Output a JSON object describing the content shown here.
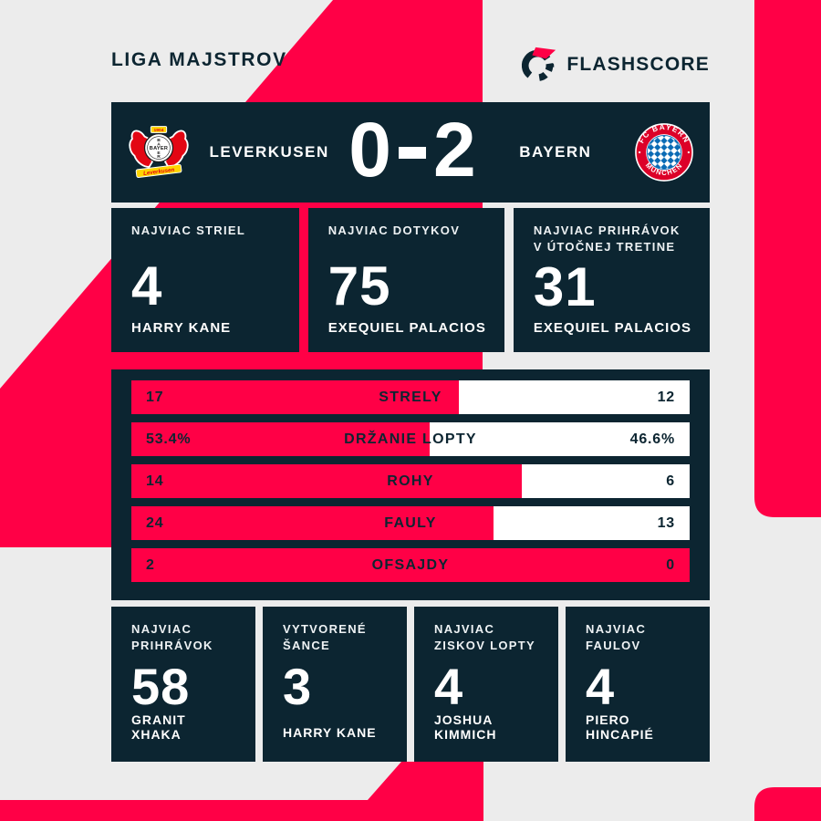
{
  "page": {
    "bg": "#ececec",
    "accent": "#ff0046",
    "dark": "#0c2531"
  },
  "header": {
    "competition": "LIGA MAJSTROV",
    "brand": "FLASHSCORE"
  },
  "scoreboard": {
    "home_team": "LEVERKUSEN",
    "away_team": "BAYERN",
    "home_score": "0",
    "away_score": "2"
  },
  "top_stats": [
    {
      "label": "NAJVIAC STRIEL",
      "value": "4",
      "player": "HARRY KANE"
    },
    {
      "label": "NAJVIAC DOTYKOV",
      "value": "75",
      "player": "EXEQUIEL PALACIOS"
    },
    {
      "label": "NAJVIAC PRIHRÁVOK V ÚTOČNEJ TRETINE",
      "value": "31",
      "player": "EXEQUIEL PALACIOS"
    }
  ],
  "match_stats": {
    "rows": [
      {
        "label": "STRELY",
        "home": "17",
        "away": "12",
        "home_value": 17,
        "away_value": 12
      },
      {
        "label": "DRŽANIE LOPTY",
        "home": "53.4%",
        "away": "46.6%",
        "home_value": 53.4,
        "away_value": 46.6
      },
      {
        "label": "ROHY",
        "home": "14",
        "away": "6",
        "home_value": 14,
        "away_value": 6
      },
      {
        "label": "FAULY",
        "home": "24",
        "away": "13",
        "home_value": 24,
        "away_value": 13
      },
      {
        "label": "OFSAJDY",
        "home": "2",
        "away": "0",
        "home_value": 2,
        "away_value": 0
      }
    ]
  },
  "bottom_stats": [
    {
      "label": "NAJVIAC PRIHRÁVOK",
      "value": "58",
      "player": "GRANIT XHAKA"
    },
    {
      "label": "VYTVORENÉ ŠANCE",
      "value": "3",
      "player": "HARRY KANE"
    },
    {
      "label": "NAJVIAC ZISKOV LOPTY",
      "value": "4",
      "player": "JOSHUA KIMMICH"
    },
    {
      "label": "NAJVIAC FAULOV",
      "value": "4",
      "player": "PIERO HINCAPIÉ"
    }
  ],
  "chart_data": {
    "type": "bar",
    "orientation": "horizontal",
    "title": "LEVERKUSEN 0-2 BAYERN — match statistics",
    "categories": [
      "STRELY",
      "DRŽANIE LOPTY",
      "ROHY",
      "FAULY",
      "OFSAJDY"
    ],
    "series": [
      {
        "name": "LEVERKUSEN",
        "values": [
          17,
          53.4,
          14,
          24,
          2
        ]
      },
      {
        "name": "BAYERN",
        "values": [
          12,
          46.6,
          6,
          13,
          0
        ]
      }
    ],
    "notes": "Each bar filled proportionally home vs away; DRŽANIE LOPTY values are percentages",
    "legend_position": "none",
    "grid": false
  }
}
